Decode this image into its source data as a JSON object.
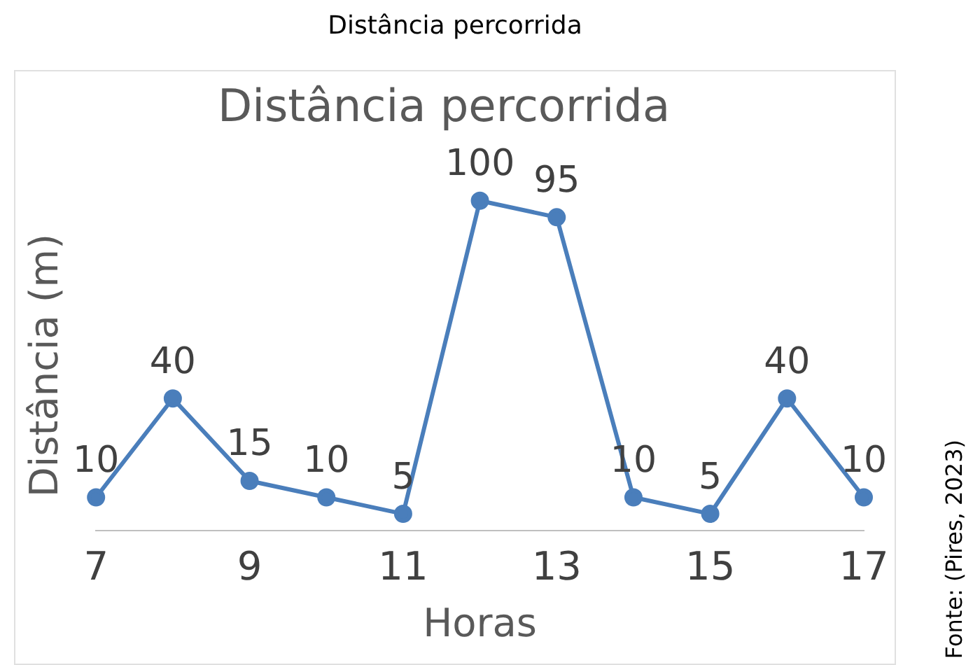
{
  "chart_data": {
    "type": "line",
    "title": "Distância percorrida",
    "subtitle": "Distância percorrida",
    "xlabel": "Horas",
    "ylabel": "Distância (m)",
    "x": [
      7,
      8,
      9,
      10,
      11,
      12,
      13,
      14,
      15,
      16,
      17
    ],
    "series": [
      {
        "color": "#4a7ebb",
        "values": [
          10,
          40,
          15,
          10,
          5,
          100,
          95,
          10,
          5,
          40,
          10
        ]
      }
    ],
    "xlim": [
      7,
      17
    ],
    "xticks": [
      7,
      9,
      11,
      13,
      15,
      17
    ],
    "tick_labels": "x",
    "grid": false,
    "legend": false,
    "marker": "circle",
    "line_style": "solid",
    "data_labels": true,
    "annotations": [
      "Fonte: (Pires, 2023)"
    ]
  }
}
